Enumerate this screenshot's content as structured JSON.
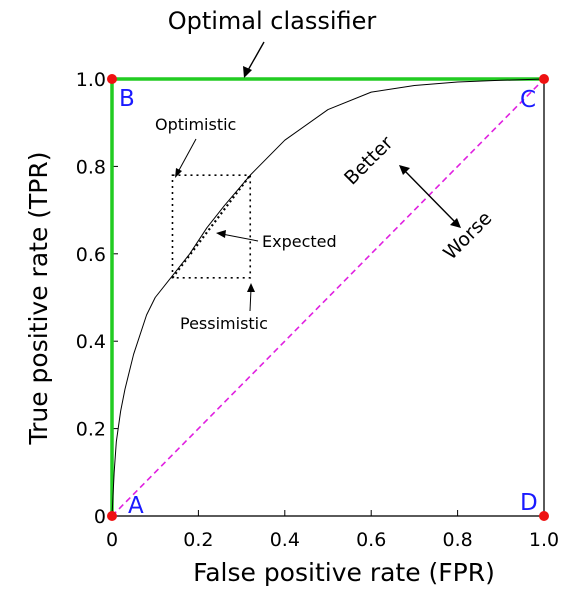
{
  "chart_data": {
    "type": "line",
    "title": "",
    "xlabel": "False positive rate (FPR)",
    "ylabel": "True positive rate (TPR)",
    "xlim": [
      0,
      1
    ],
    "ylim": [
      0,
      1
    ],
    "grid": false,
    "legend": "none",
    "x_ticks": [
      "0",
      "0.2",
      "0.4",
      "0.6",
      "0.8",
      "1.0"
    ],
    "y_ticks": [
      "0",
      "0.2",
      "0.4",
      "0.6",
      "0.8",
      "1.0"
    ],
    "series": [
      {
        "style": "optimal",
        "color": "#22cc22",
        "x": [
          0,
          0,
          1
        ],
        "y": [
          0,
          1,
          1
        ]
      },
      {
        "style": "random",
        "color": "#e020e0",
        "x": [
          0,
          1
        ],
        "y": [
          0,
          1
        ]
      },
      {
        "style": "roc-curve",
        "color": "#000000",
        "x": [
          0,
          0.005,
          0.01,
          0.02,
          0.03,
          0.05,
          0.08,
          0.1,
          0.14,
          0.18,
          0.22,
          0.26,
          0.32,
          0.4,
          0.5,
          0.6,
          0.7,
          0.8,
          0.9,
          1.0
        ],
        "y": [
          0,
          0.1,
          0.17,
          0.24,
          0.29,
          0.37,
          0.46,
          0.5,
          0.55,
          0.6,
          0.66,
          0.71,
          0.78,
          0.86,
          0.93,
          0.97,
          0.985,
          0.993,
          0.997,
          1.0
        ]
      },
      {
        "style": "expected",
        "color": "#000000",
        "x": [
          0.14,
          0.32
        ],
        "y": [
          0.545,
          0.78
        ]
      }
    ],
    "box": {
      "x": [
        0.14,
        0.32
      ],
      "y": [
        0.545,
        0.78
      ]
    },
    "points": [
      {
        "label": "A",
        "x": 0,
        "y": 0
      },
      {
        "label": "B",
        "x": 0,
        "y": 1
      },
      {
        "label": "C",
        "x": 1,
        "y": 1
      },
      {
        "label": "D",
        "x": 1,
        "y": 0
      }
    ],
    "annotations": {
      "optimal": "Optimal classifier",
      "optimistic": "Optimistic",
      "expected": "Expected",
      "pessimistic": "Pessimistic",
      "better": "Better",
      "worse": "Worse"
    },
    "point_color": "#ee1111",
    "label_color": "#1a1aff"
  }
}
